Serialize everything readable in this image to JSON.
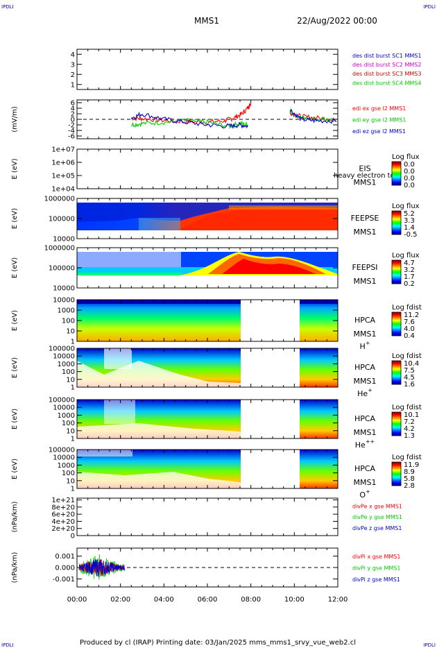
{
  "corner_labels": {
    "top_left": "IPDLI",
    "top_right": "IPDLI",
    "bottom_left": "IPDLI",
    "bottom_right": "IPDLI"
  },
  "header": {
    "mission": "MMS1",
    "date": "22/Aug/2022 00:00"
  },
  "footer": {
    "text": "Produced by cl (IRAP)   Printing date: 03/Jan/2025   mms_mms1_srvy_vue_web2.cl"
  },
  "x_axis": {
    "ticks": [
      "00:00",
      "02:00",
      "04:00",
      "06:00",
      "08:00",
      "10:00",
      "12:00"
    ],
    "range_hours": [
      0,
      12
    ]
  },
  "colors": {
    "red": "#ff0000",
    "green": "#00cc00",
    "blue": "#0000cc",
    "magenta": "#cc00cc",
    "dashed": "#000000"
  },
  "chart_data": [
    {
      "type": "line",
      "id": "p1",
      "ylim": [
        0.5,
        4.5
      ],
      "yticks": [
        "1",
        "2",
        "3",
        "4"
      ],
      "ylabel": "",
      "legend": [
        {
          "text": "des dist burst SC1 MMS1",
          "color": "#0000cc"
        },
        {
          "text": "des dist burst SC2 MMS2",
          "color": "#cc00cc"
        },
        {
          "text": "des dist burst SC3 MMS3",
          "color": "#cc0000"
        },
        {
          "text": "des dist burst SC4 MMS4",
          "color": "#00cc00"
        }
      ],
      "series": []
    },
    {
      "type": "line",
      "id": "p2",
      "ylim": [
        -7,
        7
      ],
      "yticks": [
        "6",
        "4",
        "2",
        "0",
        "-2",
        "-4",
        "-6"
      ],
      "ylabel": "(mV/m)",
      "legend": [
        {
          "text": "edi ex gse l2 MMS1",
          "color": "#ff0000"
        },
        {
          "text": "edi ey gse l2 MMS1",
          "color": "#00cc00"
        },
        {
          "text": "edi ez gse l2 MMS1",
          "color": "#0000cc"
        }
      ],
      "zero_line": 0,
      "series": [
        {
          "color": "#ff0000",
          "x": [
            2.5,
            3.0,
            4.0,
            5.0,
            6.0,
            6.8,
            7.2,
            7.6,
            7.9,
            8.0
          ],
          "y": [
            0.5,
            0.3,
            -0.4,
            -0.8,
            -1.0,
            -0.5,
            0.5,
            2.0,
            4.5,
            6.0
          ]
        },
        {
          "color": "#00cc00",
          "x": [
            2.5,
            3.0,
            4.0,
            5.0,
            6.0,
            7.0,
            7.5,
            7.9
          ],
          "y": [
            -2.0,
            -1.5,
            -1.0,
            -0.5,
            -1.0,
            -2.5,
            -1.5,
            -2.0
          ]
        },
        {
          "color": "#0000cc",
          "x": [
            2.5,
            3.0,
            4.0,
            5.0,
            6.0,
            7.0,
            7.5,
            7.9
          ],
          "y": [
            0.5,
            2.0,
            0.0,
            -1.0,
            -2.0,
            -2.5,
            -2.0,
            -2.5
          ]
        },
        {
          "color": "#ff0000",
          "x": [
            9.8,
            10.3,
            11.0,
            12.0
          ],
          "y": [
            2.5,
            1.0,
            0.5,
            0.0
          ]
        },
        {
          "color": "#00cc00",
          "x": [
            9.8,
            10.3,
            11.0,
            12.0
          ],
          "y": [
            3.0,
            0.5,
            0.0,
            -0.2
          ]
        },
        {
          "color": "#0000cc",
          "x": [
            9.8,
            10.3,
            11.0,
            12.0
          ],
          "y": [
            3.5,
            0.0,
            -0.5,
            -0.5
          ]
        }
      ]
    },
    {
      "type": "heatmap",
      "id": "p3",
      "ylabel": "E (eV)",
      "yticks": [
        "1e+07",
        "1e+06",
        "1e+05",
        "1e+04"
      ],
      "instrument": [
        "EIS",
        "MMS1"
      ],
      "overlay": "heavy electron to",
      "colorbar": {
        "title": "Log flux",
        "labels": [
          "0.0",
          "0.0",
          "0.0",
          "0.0"
        ]
      },
      "segments": []
    },
    {
      "type": "heatmap",
      "id": "p4",
      "ylabel": "E (eV)",
      "yticks": [
        "1000000",
        "100000",
        "10000"
      ],
      "instrument": [
        "FEEPSE",
        "MMS1"
      ],
      "colorbar": {
        "title": "Log flux",
        "labels": [
          "5.2",
          "3.3",
          "1.4",
          "-0.5"
        ]
      },
      "segments": [
        {
          "x0": 0,
          "x1": 12
        }
      ]
    },
    {
      "type": "heatmap",
      "id": "p5",
      "ylabel": "E (eV)",
      "yticks": [
        "1000000",
        "100000",
        "10000"
      ],
      "instrument": [
        "FEEPSI",
        "MMS1"
      ],
      "colorbar": {
        "title": "Log flux",
        "labels": [
          "4.7",
          "3.2",
          "1.7",
          "0.2"
        ]
      },
      "segments": [
        {
          "x0": 0,
          "x1": 12
        }
      ]
    },
    {
      "type": "heatmap",
      "id": "p6",
      "ylabel": "E (eV)",
      "yticks": [
        "10000",
        "1000",
        "100",
        "10",
        "1"
      ],
      "instrument": [
        "HPCA",
        "MMS1"
      ],
      "species": "H",
      "charge": "+",
      "colorbar": {
        "title": "Log fdist",
        "labels": [
          "11.2",
          "7.6",
          "4.0",
          "0.4"
        ]
      },
      "segments": [
        {
          "x0": 0,
          "x1": 7.5
        },
        {
          "x0": 10.25,
          "x1": 12
        }
      ]
    },
    {
      "type": "heatmap",
      "id": "p7",
      "ylabel": "E (eV)",
      "yticks": [
        "100000",
        "10000",
        "1000",
        "100",
        "10",
        "1"
      ],
      "instrument": [
        "HPCA",
        "MMS1"
      ],
      "species": "He",
      "charge": "+",
      "colorbar": {
        "title": "Log fdist",
        "labels": [
          "10.4",
          "7.5",
          "4.5",
          "1.6"
        ]
      },
      "segments": [
        {
          "x0": 0,
          "x1": 7.5
        },
        {
          "x0": 10.25,
          "x1": 12
        }
      ]
    },
    {
      "type": "heatmap",
      "id": "p8",
      "ylabel": "E (eV)",
      "yticks": [
        "100000",
        "10000",
        "1000",
        "100",
        "10",
        "1"
      ],
      "instrument": [
        "HPCA",
        "MMS1"
      ],
      "species": "He",
      "charge": "++",
      "colorbar": {
        "title": "Log fdist",
        "labels": [
          "10.1",
          "7.2",
          "4.2",
          "1.3"
        ]
      },
      "segments": [
        {
          "x0": 0,
          "x1": 7.5
        },
        {
          "x0": 10.25,
          "x1": 12
        }
      ]
    },
    {
      "type": "heatmap",
      "id": "p9",
      "ylabel": "E (eV)",
      "yticks": [
        "100000",
        "10000",
        "1000",
        "100",
        "10",
        "1"
      ],
      "instrument": [
        "HPCA",
        "MMS1"
      ],
      "species": "O",
      "charge": "+",
      "colorbar": {
        "title": "Log fdist",
        "labels": [
          "11.9",
          "8.9",
          "5.8",
          "2.8"
        ]
      },
      "segments": [
        {
          "x0": 0,
          "x1": 7.5
        },
        {
          "x0": 10.25,
          "x1": 12
        }
      ]
    },
    {
      "type": "line",
      "id": "p10",
      "ylabel": "(nPa/km)",
      "ylim": [
        0,
        1.05e+21
      ],
      "yticks": [
        "1e+21",
        "8e+20",
        "6e+20",
        "4e+20",
        "2e+20",
        "0"
      ],
      "ytick_values": [
        1e+21,
        8e+20,
        6e+20,
        4e+20,
        2e+20,
        0
      ],
      "zero_line": 0,
      "legend": [
        {
          "text": "divPe x gse MMS1",
          "color": "#ff0000"
        },
        {
          "text": "divPe y gse MMS1",
          "color": "#00cc00"
        },
        {
          "text": "divPe z gse MMS1",
          "color": "#0000cc"
        }
      ],
      "series": []
    },
    {
      "type": "line",
      "id": "p11",
      "ylabel": "(nPa/km)",
      "ylim": [
        -0.0017,
        0.0017
      ],
      "yticks": [
        "0.001",
        "0.000",
        "-0.001"
      ],
      "ytick_values": [
        0.001,
        0,
        -0.001
      ],
      "zero_line": 0,
      "legend": [
        {
          "text": "divPi x gse MMS1",
          "color": "#ff0000"
        },
        {
          "text": "divPi y gse MMS1",
          "color": "#00cc00"
        },
        {
          "text": "divPi z gse MMS1",
          "color": "#0000cc"
        }
      ],
      "noise": {
        "x0": 0.1,
        "x1": 2.2,
        "amplitude": 0.0012
      }
    }
  ]
}
